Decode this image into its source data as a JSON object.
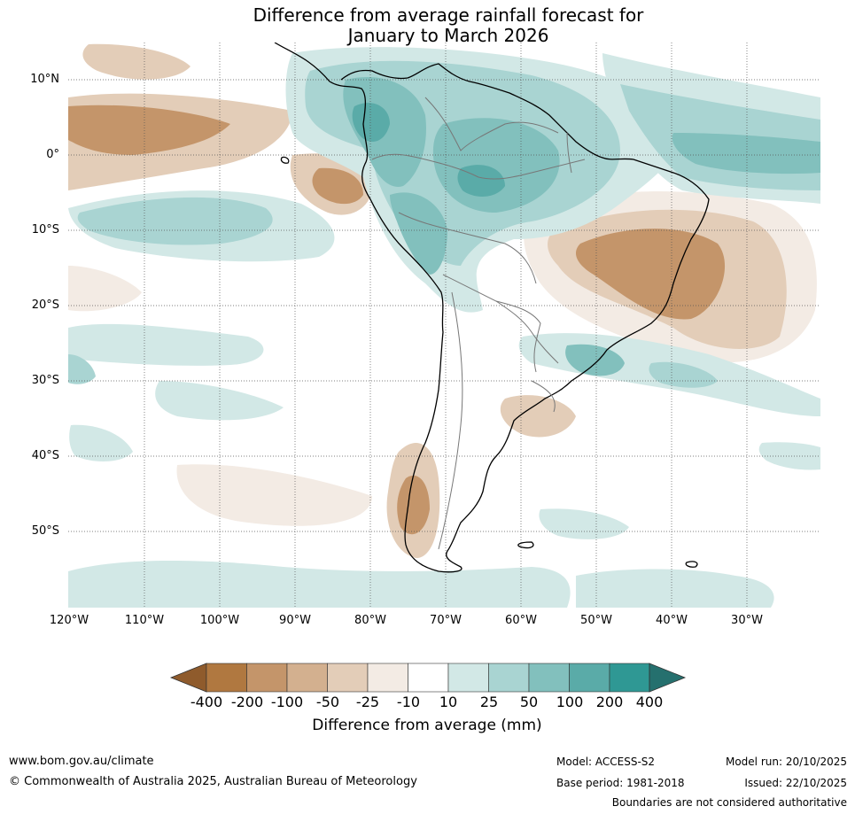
{
  "title": {
    "line1": "Difference from average rainfall forecast for",
    "line2": "January to March 2026"
  },
  "map": {
    "lat_labels": [
      "10°N",
      "0°",
      "10°S",
      "20°S",
      "30°S",
      "40°S",
      "50°S"
    ],
    "lon_labels": [
      "120°W",
      "110°W",
      "100°W",
      "90°W",
      "80°W",
      "70°W",
      "60°W",
      "50°W",
      "40°W",
      "30°W"
    ],
    "extent": {
      "lon": [
        -120,
        -20
      ],
      "lat": [
        -60,
        15
      ]
    }
  },
  "colorbar": {
    "title": "Difference from average (mm)",
    "tick_labels": [
      "-400",
      "-200",
      "-100",
      "-50",
      "-25",
      "-10",
      "10",
      "25",
      "50",
      "100",
      "200",
      "400"
    ],
    "colors": [
      "#8f5b2c",
      "#b07840",
      "#c4956a",
      "#d3b08f",
      "#e3cdb8",
      "#f3ebe4",
      "#ffffff",
      "#d2e8e6",
      "#a9d4d2",
      "#82c0bd",
      "#5aaba8",
      "#2f9894",
      "#25706e"
    ]
  },
  "footer": {
    "website": "www.bom.gov.au/climate",
    "copyright": "© Commonwealth of Australia 2025, Australian Bureau of Meteorology",
    "model": "Model: ACCESS-S2",
    "base_period": "Base period: 1981-2018",
    "model_run": "Model run: 20/10/2025",
    "issued": "Issued: 22/10/2025",
    "disclaimer": "Boundaries are not considered authoritative"
  }
}
